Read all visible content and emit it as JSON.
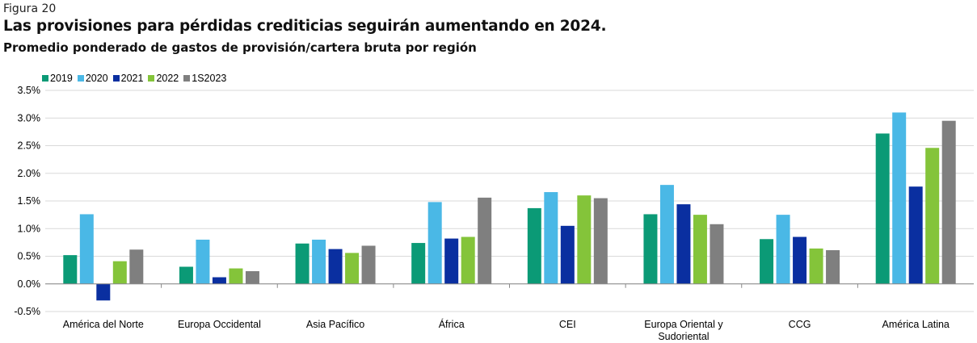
{
  "figure_label": "Figura 20",
  "title": "Las provisiones para pérdidas crediticias seguirán aumentando en 2024.",
  "subtitle": "Promedio ponderado de gastos de provisión/cartera bruta por región",
  "chart_data": {
    "type": "bar",
    "categories": [
      "América del Norte",
      "Europa Occidental",
      "Asia Pacífico",
      "África",
      "CEI",
      "Europa Oriental y Sudoriental",
      "CCG",
      "América Latina"
    ],
    "category_lines": [
      [
        "América del Norte"
      ],
      [
        "Europa Occidental"
      ],
      [
        "Asia Pacífico"
      ],
      [
        "África"
      ],
      [
        "CEI"
      ],
      [
        "Europa Oriental y",
        "Sudoriental"
      ],
      [
        "CCG"
      ],
      [
        "América Latina"
      ]
    ],
    "series": [
      {
        "name": "2019",
        "color": "#0b9a76",
        "values": [
          0.52,
          0.31,
          0.73,
          0.74,
          1.37,
          1.26,
          0.81,
          2.72
        ]
      },
      {
        "name": "2020",
        "color": "#4ab8e6",
        "values": [
          1.26,
          0.8,
          0.8,
          1.48,
          1.66,
          1.79,
          1.25,
          3.1
        ]
      },
      {
        "name": "2021",
        "color": "#0a2fa0",
        "values": [
          -0.3,
          0.12,
          0.63,
          0.82,
          1.05,
          1.44,
          0.85,
          1.76
        ]
      },
      {
        "name": "2022",
        "color": "#84c43a",
        "values": [
          0.41,
          0.28,
          0.56,
          0.85,
          1.6,
          1.25,
          0.64,
          2.46
        ]
      },
      {
        "name": "1S2023",
        "color": "#7f7f7f",
        "values": [
          0.62,
          0.23,
          0.69,
          1.56,
          1.55,
          1.08,
          0.61,
          2.95
        ]
      }
    ],
    "y_ticks": [
      "3.5%",
      "3.0%",
      "2.5%",
      "2.0%",
      "1.5%",
      "1.0%",
      "0.5%",
      "0.0%",
      "-0.5%"
    ],
    "ylim": [
      -0.5,
      3.5
    ],
    "grid": true,
    "legend_position": "top-left"
  }
}
